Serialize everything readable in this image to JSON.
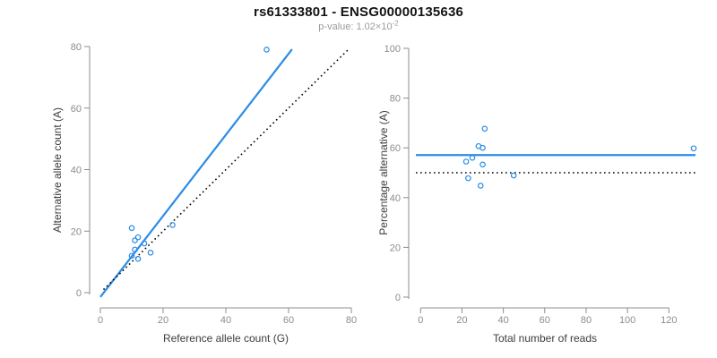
{
  "header": {
    "title": "rs61333801 - ENSG00000135636",
    "pvalue_label": "p-value: 1.02×10",
    "pvalue_exponent": "-2"
  },
  "colors": {
    "accent_blue": "#2b8ce4",
    "reference_black": "#000000",
    "axis_gray": "#8c8c8c",
    "axis_title_gray": "#3d3d3d",
    "subtitle_gray": "#9b9b9b"
  },
  "chart_data": [
    {
      "type": "scatter",
      "panel": "left",
      "xlabel": "Reference allele count (G)",
      "ylabel": "Alternative allele count (A)",
      "xlim": [
        0,
        80
      ],
      "ylim": [
        0,
        80
      ],
      "xticks": [
        0,
        20,
        40,
        60,
        80
      ],
      "yticks": [
        0,
        20,
        40,
        60,
        80
      ],
      "grid": false,
      "legend": null,
      "points": [
        [
          10,
          21
        ],
        [
          11,
          17
        ],
        [
          12,
          18
        ],
        [
          10,
          12
        ],
        [
          11,
          14
        ],
        [
          14,
          16
        ],
        [
          12,
          11
        ],
        [
          16,
          13
        ],
        [
          23,
          22
        ],
        [
          53,
          79
        ]
      ],
      "lines": [
        {
          "name": "fit-line",
          "style": "solid",
          "color_key": "accent_blue",
          "x1": 0,
          "y1": -1.4,
          "x2": 61.1,
          "y2": 79.1
        },
        {
          "name": "identity-line",
          "style": "dotted",
          "color_key": "reference_black",
          "x1": 1,
          "y1": 1,
          "x2": 79,
          "y2": 79
        }
      ]
    },
    {
      "type": "scatter",
      "panel": "right",
      "xlabel": "Total number of reads",
      "ylabel": "Percentage alternative (A)",
      "xlim": [
        0,
        135
      ],
      "ylim": [
        0,
        100
      ],
      "xticks": [
        0,
        20,
        40,
        60,
        80,
        100,
        120
      ],
      "yticks": [
        0,
        20,
        40,
        60,
        80,
        100
      ],
      "grid": false,
      "legend": null,
      "points": [
        [
          31,
          67.7
        ],
        [
          28,
          60.7
        ],
        [
          30,
          60.0
        ],
        [
          22,
          54.5
        ],
        [
          25,
          56.0
        ],
        [
          30,
          53.3
        ],
        [
          23,
          47.8
        ],
        [
          29,
          44.8
        ],
        [
          45,
          48.9
        ],
        [
          132,
          59.8
        ]
      ],
      "lines": [
        {
          "name": "mean-percentage-line",
          "style": "solid",
          "color_key": "accent_blue",
          "y": 57.1
        },
        {
          "name": "fifty-percent-line",
          "style": "dotted",
          "color_key": "reference_black",
          "y": 50
        }
      ]
    }
  ]
}
